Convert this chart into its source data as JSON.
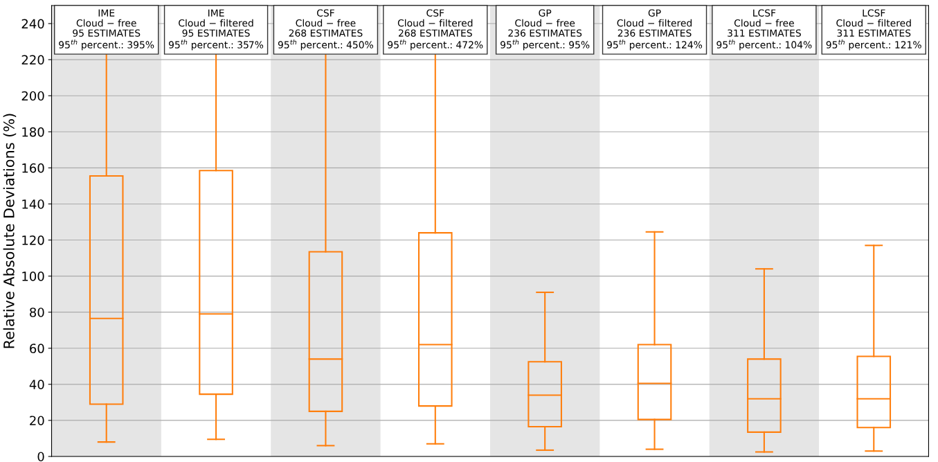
{
  "chart_data": {
    "type": "box",
    "ylabel": "Relative Absolute Deviations (%)",
    "categories": [
      null,
      null,
      null,
      null,
      null,
      null,
      null,
      null
    ],
    "series": [
      {
        "color": "#ff7f0e",
        "boxes": [
          {
            "low": 8,
            "q1": 29,
            "median": 76.5,
            "q3": 155.5,
            "high": null
          },
          {
            "low": 9.5,
            "q1": 34.5,
            "median": 79,
            "q3": 158.5,
            "high": null
          },
          {
            "low": 6,
            "q1": 25,
            "median": 54,
            "q3": 113.5,
            "high": null
          },
          {
            "low": 7,
            "q1": 28,
            "median": 62,
            "q3": 124,
            "high": null
          },
          {
            "low": 3.5,
            "q1": 16.5,
            "median": 34,
            "q3": 52.5,
            "high": 91
          },
          {
            "low": 4,
            "q1": 20.5,
            "median": 40.5,
            "q3": 62,
            "high": 124.5
          },
          {
            "low": 2.5,
            "q1": 13.5,
            "median": 32,
            "q3": 54,
            "high": 104
          },
          {
            "low": 3,
            "q1": 16,
            "median": 32,
            "q3": 55.5,
            "high": 117
          }
        ]
      }
    ],
    "annotations": [
      "IME\nCloud − free\n95 ESTIMATES\n95$^{th}$ percent.: 395%",
      "IME\nCloud − filtered\n95 ESTIMATES\n95$^{th}$ percent.: 357%",
      "CSF\nCloud − free\n268 ESTIMATES\n95$^{th}$ percent.: 450%",
      "CSF\nCloud − filtered\n268 ESTIMATES\n95$^{th}$ percent.: 472%",
      "GP\nCloud − free\n236 ESTIMATES\n95$^{th}$ percent.: 95%",
      "GP\nCloud − filtered\n236 ESTIMATES\n95$^{th}$ percent.: 124%",
      "LCSF\nCloud − free\n311 ESTIMATES\n95$^{th}$ percent.: 104%",
      "LCSF\nCloud − filtered\n311 ESTIMATES\n95$^{th}$ percent.: 121%"
    ],
    "ylim": [
      0,
      250
    ],
    "yticks": [
      0,
      20,
      40,
      60,
      80,
      100,
      120,
      140,
      160,
      180,
      200,
      220,
      240
    ],
    "grid": "y"
  }
}
